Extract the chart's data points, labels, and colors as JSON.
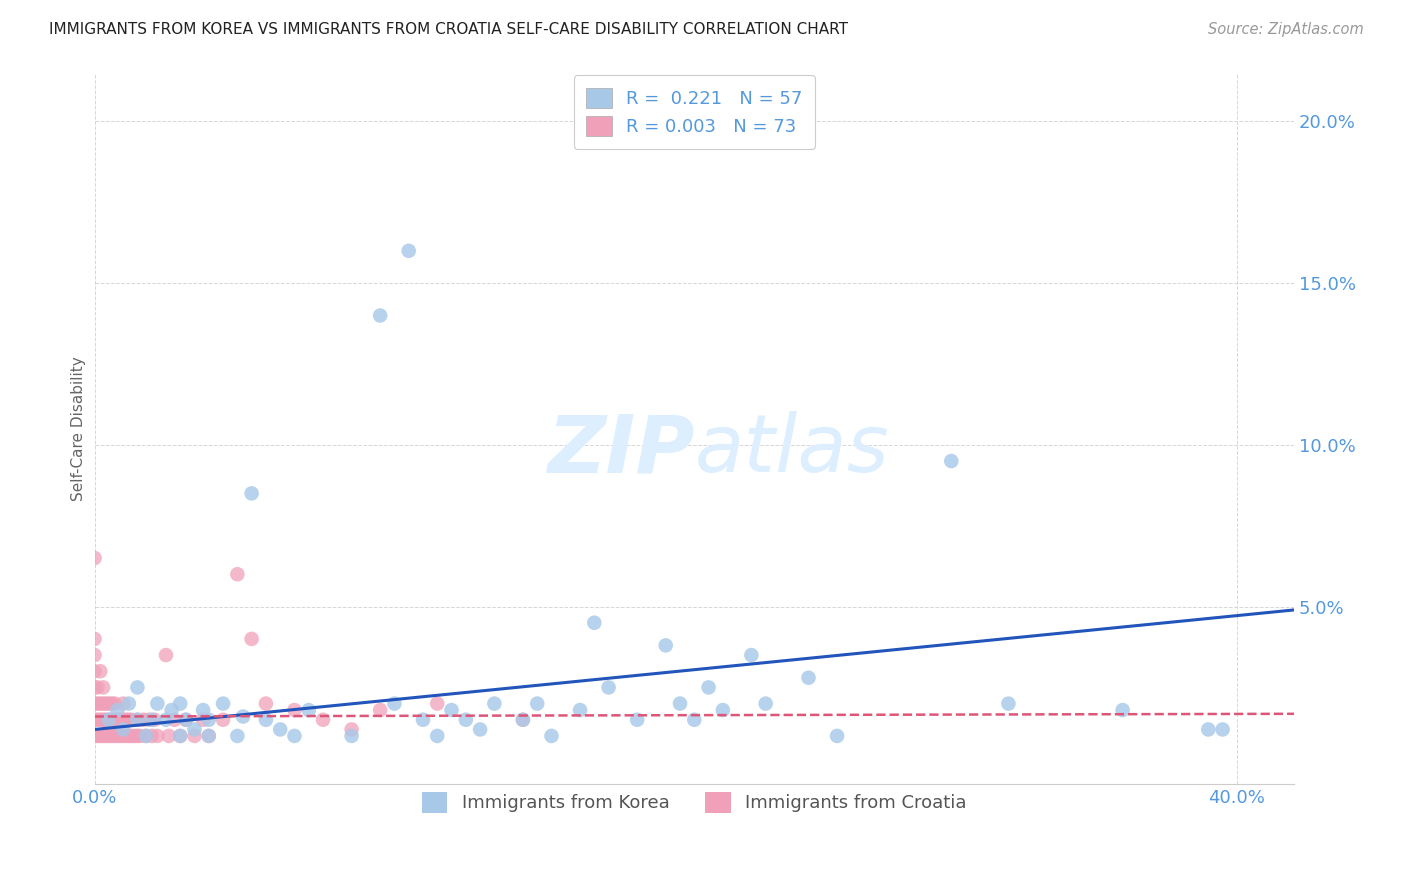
{
  "title": "IMMIGRANTS FROM KOREA VS IMMIGRANTS FROM CROATIA SELF-CARE DISABILITY CORRELATION CHART",
  "source": "Source: ZipAtlas.com",
  "ylabel": "Self-Care Disability",
  "xlim": [
    0.0,
    0.42
  ],
  "ylim": [
    -0.005,
    0.215
  ],
  "korea_R": 0.221,
  "korea_N": 57,
  "croatia_R": 0.003,
  "croatia_N": 73,
  "korea_color": "#a8c8e8",
  "croatia_color": "#f0a0b8",
  "korea_line_color": "#2255bb",
  "croatia_line_color": "#dd5577",
  "background_color": "#ffffff",
  "grid_color": "#cccccc",
  "title_color": "#222222",
  "axis_label_color": "#5599dd",
  "watermark_color": "#ddeeff",
  "korea_x": [
    0.005,
    0.008,
    0.01,
    0.012,
    0.015,
    0.015,
    0.018,
    0.02,
    0.022,
    0.025,
    0.027,
    0.03,
    0.03,
    0.032,
    0.035,
    0.038,
    0.04,
    0.04,
    0.045,
    0.05,
    0.052,
    0.055,
    0.06,
    0.065,
    0.07,
    0.075,
    0.09,
    0.1,
    0.105,
    0.11,
    0.115,
    0.12,
    0.125,
    0.13,
    0.135,
    0.14,
    0.15,
    0.155,
    0.16,
    0.17,
    0.175,
    0.18,
    0.19,
    0.2,
    0.205,
    0.21,
    0.215,
    0.22,
    0.23,
    0.235,
    0.25,
    0.26,
    0.3,
    0.32,
    0.36,
    0.39,
    0.395
  ],
  "korea_y": [
    0.015,
    0.018,
    0.012,
    0.02,
    0.015,
    0.025,
    0.01,
    0.015,
    0.02,
    0.015,
    0.018,
    0.01,
    0.02,
    0.015,
    0.012,
    0.018,
    0.01,
    0.015,
    0.02,
    0.01,
    0.016,
    0.085,
    0.015,
    0.012,
    0.01,
    0.018,
    0.01,
    0.14,
    0.02,
    0.16,
    0.015,
    0.01,
    0.018,
    0.015,
    0.012,
    0.02,
    0.015,
    0.02,
    0.01,
    0.018,
    0.045,
    0.025,
    0.015,
    0.038,
    0.02,
    0.015,
    0.025,
    0.018,
    0.035,
    0.02,
    0.028,
    0.01,
    0.095,
    0.02,
    0.018,
    0.012,
    0.012
  ],
  "croatia_x": [
    0.0,
    0.0,
    0.0,
    0.0,
    0.0,
    0.0,
    0.0,
    0.0,
    0.001,
    0.001,
    0.001,
    0.001,
    0.002,
    0.002,
    0.002,
    0.002,
    0.003,
    0.003,
    0.003,
    0.003,
    0.004,
    0.004,
    0.004,
    0.005,
    0.005,
    0.005,
    0.006,
    0.006,
    0.006,
    0.007,
    0.007,
    0.007,
    0.008,
    0.008,
    0.009,
    0.009,
    0.01,
    0.01,
    0.01,
    0.011,
    0.011,
    0.012,
    0.012,
    0.013,
    0.013,
    0.014,
    0.015,
    0.015,
    0.016,
    0.017,
    0.018,
    0.019,
    0.02,
    0.021,
    0.022,
    0.025,
    0.026,
    0.028,
    0.03,
    0.032,
    0.035,
    0.038,
    0.04,
    0.045,
    0.05,
    0.055,
    0.06,
    0.07,
    0.08,
    0.09,
    0.1,
    0.12,
    0.15
  ],
  "croatia_y": [
    0.01,
    0.015,
    0.02,
    0.025,
    0.03,
    0.035,
    0.04,
    0.065,
    0.01,
    0.015,
    0.02,
    0.025,
    0.01,
    0.015,
    0.02,
    0.03,
    0.01,
    0.015,
    0.02,
    0.025,
    0.01,
    0.015,
    0.02,
    0.01,
    0.015,
    0.02,
    0.01,
    0.015,
    0.02,
    0.01,
    0.015,
    0.02,
    0.01,
    0.015,
    0.01,
    0.015,
    0.01,
    0.015,
    0.02,
    0.01,
    0.015,
    0.01,
    0.015,
    0.01,
    0.015,
    0.01,
    0.01,
    0.015,
    0.01,
    0.015,
    0.01,
    0.015,
    0.01,
    0.015,
    0.01,
    0.035,
    0.01,
    0.015,
    0.01,
    0.015,
    0.01,
    0.015,
    0.01,
    0.015,
    0.06,
    0.04,
    0.02,
    0.018,
    0.015,
    0.012,
    0.018,
    0.02,
    0.015
  ],
  "korea_slope": 0.088,
  "korea_intercept": 0.012,
  "croatia_slope": 0.002,
  "croatia_intercept": 0.016,
  "ytick_vals": [
    0.05,
    0.1,
    0.15,
    0.2
  ],
  "ytick_labels": [
    "5.0%",
    "10.0%",
    "15.0%",
    "20.0%"
  ]
}
